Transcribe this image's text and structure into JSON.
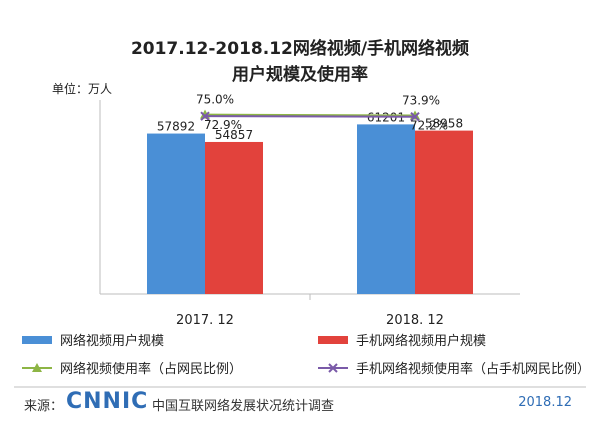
{
  "chart_data": {
    "type": "bar",
    "title_line1": "2017.12-2018.12网络视频/手机网络视频",
    "title_line2": "用户规模及使用率",
    "unit_label": "单位：万人",
    "categories": [
      "2017. 12",
      "2018. 12"
    ],
    "series": [
      {
        "name": "网络视频用户规模",
        "values": [
          57892,
          61201
        ],
        "color": "#4a8fd6",
        "type": "bar"
      },
      {
        "name": "手机网络视频用户规模",
        "values": [
          54857,
          58958
        ],
        "color": "#e2423c",
        "type": "bar"
      },
      {
        "name": "网络视频使用率（占网民比例）",
        "values": [
          75.0,
          73.9
        ],
        "labels": [
          "75.0%",
          "73.9%"
        ],
        "color": "#8db545",
        "type": "line"
      },
      {
        "name": "手机网络视频使用率（占手机网民比例）",
        "values": [
          72.9,
          72.2
        ],
        "labels": [
          "72.9%",
          "72.2%"
        ],
        "color": "#7a5aa8",
        "type": "line"
      }
    ],
    "bar_labels": [
      [
        "57892",
        "61201"
      ],
      [
        "54857",
        "58958"
      ]
    ],
    "ylim": [
      0,
      70000
    ],
    "line_ylim": [
      -170,
      95
    ],
    "legend_position": "bottom"
  },
  "footer": {
    "source_label": "来源：",
    "logo_text": "CNNIC",
    "source_text": "中国互联网络发展状况统计调查",
    "date": "2018.12"
  }
}
